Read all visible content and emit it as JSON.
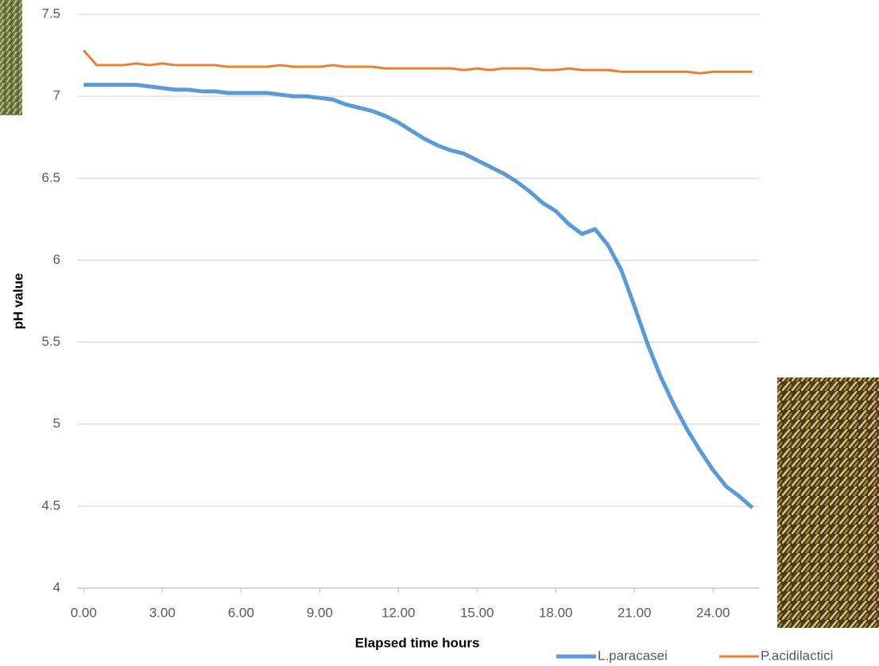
{
  "chart_data": {
    "type": "line",
    "x_label": "Elapsed time hours",
    "y_label": "pH value",
    "x": [
      0,
      0.5,
      1,
      1.5,
      2,
      2.5,
      3,
      3.5,
      4,
      4.5,
      5,
      5.5,
      6,
      6.5,
      7,
      7.5,
      8,
      8.5,
      9,
      9.5,
      10,
      10.5,
      11,
      11.5,
      12,
      12.5,
      13,
      13.5,
      14,
      14.5,
      15,
      15.5,
      16,
      16.5,
      17,
      17.5,
      18,
      18.5,
      19,
      19.5,
      20,
      20.5,
      21,
      21.5,
      22,
      22.5,
      23,
      23.5,
      24,
      24.5,
      25,
      25.5
    ],
    "series": [
      {
        "name": "L.paracasei",
        "color": "#5b9bd5",
        "values": [
          7.07,
          7.07,
          7.07,
          7.07,
          7.07,
          7.06,
          7.05,
          7.04,
          7.04,
          7.03,
          7.03,
          7.02,
          7.02,
          7.02,
          7.02,
          7.01,
          7.0,
          7.0,
          6.99,
          6.98,
          6.95,
          6.93,
          6.91,
          6.88,
          6.84,
          6.79,
          6.74,
          6.7,
          6.67,
          6.65,
          6.61,
          6.57,
          6.53,
          6.48,
          6.42,
          6.35,
          6.3,
          6.22,
          6.16,
          6.19,
          6.09,
          5.94,
          5.72,
          5.49,
          5.29,
          5.12,
          4.97,
          4.84,
          4.72,
          4.62,
          4.56,
          4.49
        ]
      },
      {
        "name": "P.acidilactici",
        "color": "#ed7d31",
        "values": [
          7.28,
          7.19,
          7.19,
          7.19,
          7.2,
          7.19,
          7.2,
          7.19,
          7.19,
          7.19,
          7.19,
          7.18,
          7.18,
          7.18,
          7.18,
          7.19,
          7.18,
          7.18,
          7.18,
          7.19,
          7.18,
          7.18,
          7.18,
          7.17,
          7.17,
          7.17,
          7.17,
          7.17,
          7.17,
          7.16,
          7.17,
          7.16,
          7.17,
          7.17,
          7.17,
          7.16,
          7.16,
          7.17,
          7.16,
          7.16,
          7.16,
          7.15,
          7.15,
          7.15,
          7.15,
          7.15,
          7.15,
          7.14,
          7.15,
          7.15,
          7.15,
          7.15
        ]
      }
    ],
    "xlim": [
      -0.25,
      25.75
    ],
    "xticks": [
      {
        "value": 0,
        "label": "0.00"
      },
      {
        "value": 3,
        "label": "3.00"
      },
      {
        "value": 6,
        "label": "6.00"
      },
      {
        "value": 9,
        "label": "9.00"
      },
      {
        "value": 12,
        "label": "12.00"
      },
      {
        "value": 15,
        "label": "15.00"
      },
      {
        "value": 18,
        "label": "18.00"
      },
      {
        "value": 21,
        "label": "21.00"
      },
      {
        "value": 24,
        "label": "24.00"
      }
    ],
    "ylim": [
      4,
      7.5
    ],
    "yticks": [
      4,
      4.5,
      5,
      5.5,
      6,
      6.5,
      7,
      7.5
    ],
    "grid": true,
    "legend": "bottom-right"
  }
}
